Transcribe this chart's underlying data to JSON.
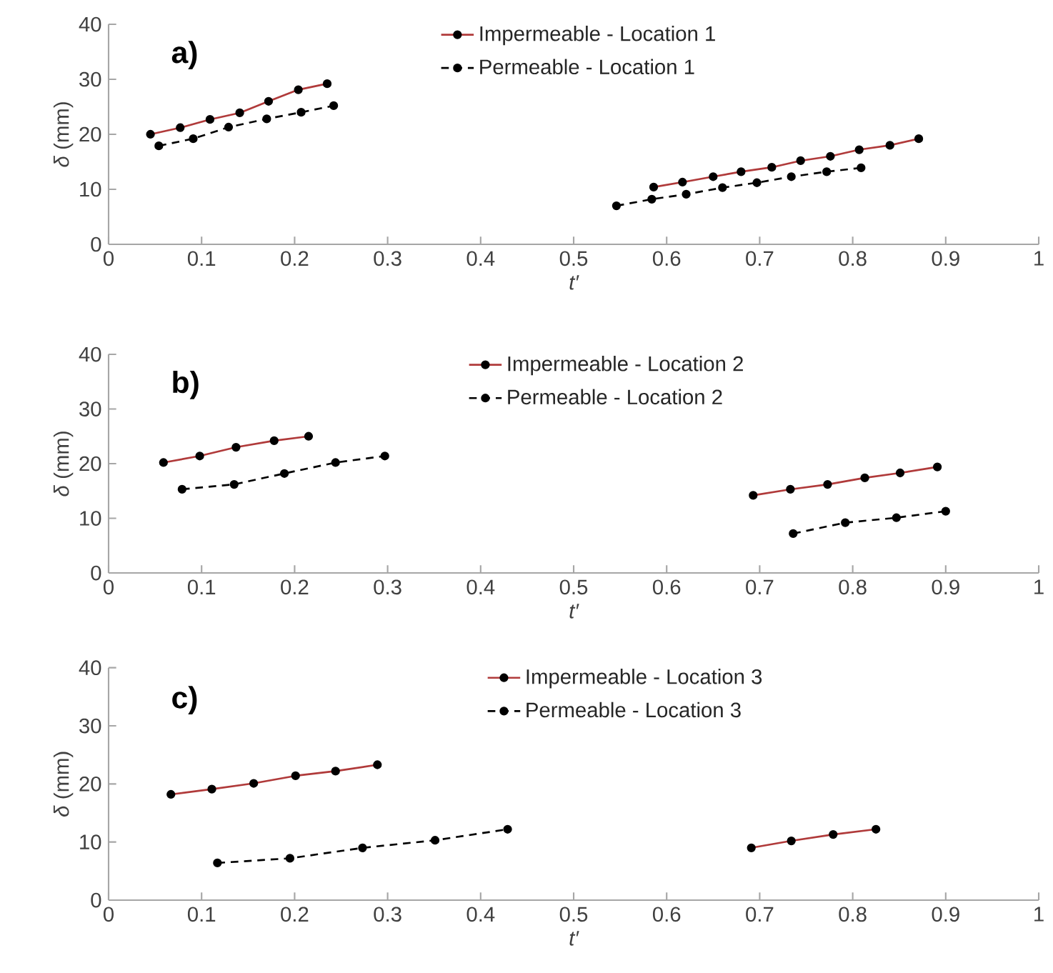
{
  "chart_data": [
    {
      "type": "line",
      "title": "a)",
      "xlabel": "t′",
      "ylabel": "*δ* (mm)",
      "xlim": [
        0,
        1
      ],
      "ylim": [
        0,
        40
      ],
      "xticks": [
        0,
        0.1,
        0.2,
        0.3,
        0.4,
        0.5,
        0.6,
        0.7,
        0.8,
        0.9,
        1
      ],
      "yticks": [
        0,
        10,
        20,
        30,
        40
      ],
      "legend": "top",
      "marker": "circle",
      "grid": false,
      "series": [
        {
          "name": "Impermeable - Location 1",
          "color": "#b03a3a",
          "line_style": "solid",
          "x": [
            0.045,
            0.077,
            0.109,
            0.141,
            0.172,
            0.204,
            0.235,
            0.4,
            0.586,
            0.617,
            0.65,
            0.68,
            0.713,
            0.744,
            0.776,
            0.807,
            0.84,
            0.871
          ],
          "values": [
            20.0,
            21.2,
            22.7,
            23.9,
            26.0,
            28.1,
            29.2,
            null,
            10.4,
            11.3,
            12.3,
            13.2,
            14.0,
            15.2,
            16.0,
            17.2,
            18.0,
            19.2
          ]
        },
        {
          "name": "Permeable - Location 1",
          "color": "#000000",
          "line_style": "dashed",
          "x": [
            0.054,
            0.091,
            0.129,
            0.17,
            0.207,
            0.242,
            0.4,
            0.546,
            0.584,
            0.621,
            0.66,
            0.697,
            0.734,
            0.772,
            0.809
          ],
          "values": [
            17.9,
            19.2,
            21.3,
            22.8,
            24.0,
            25.2,
            null,
            7.0,
            8.2,
            9.1,
            10.3,
            11.2,
            12.3,
            13.2,
            13.9
          ]
        }
      ]
    },
    {
      "type": "line",
      "title": "b)",
      "xlabel": "t′",
      "ylabel": "*δ* (mm)",
      "xlim": [
        0,
        1
      ],
      "ylim": [
        0,
        40
      ],
      "xticks": [
        0,
        0.1,
        0.2,
        0.3,
        0.4,
        0.5,
        0.6,
        0.7,
        0.8,
        0.9,
        1
      ],
      "yticks": [
        0,
        10,
        20,
        30,
        40
      ],
      "legend": "top",
      "marker": "circle",
      "grid": false,
      "series": [
        {
          "name": "Impermeable - Location 2",
          "color": "#b03a3a",
          "line_style": "solid",
          "x": [
            0.059,
            0.098,
            0.137,
            0.178,
            0.215,
            0.45,
            0.693,
            0.733,
            0.773,
            0.813,
            0.851,
            0.891
          ],
          "values": [
            20.2,
            21.4,
            23.0,
            24.2,
            25.0,
            null,
            14.2,
            15.3,
            16.2,
            17.4,
            18.3,
            19.4
          ]
        },
        {
          "name": "Permeable - Location 2",
          "color": "#000000",
          "line_style": "dashed",
          "x": [
            0.079,
            0.135,
            0.189,
            0.244,
            0.297,
            0.5,
            0.736,
            0.792,
            0.847,
            0.9
          ],
          "values": [
            15.3,
            16.2,
            18.2,
            20.2,
            21.4,
            null,
            7.2,
            9.2,
            10.1,
            11.3
          ]
        }
      ]
    },
    {
      "type": "line",
      "title": "c)",
      "xlabel": "t′",
      "ylabel": "*δ* (mm)",
      "xlim": [
        0,
        1
      ],
      "ylim": [
        0,
        40
      ],
      "xticks": [
        0,
        0.1,
        0.2,
        0.3,
        0.4,
        0.5,
        0.6,
        0.7,
        0.8,
        0.9,
        1
      ],
      "yticks": [
        0,
        10,
        20,
        30,
        40
      ],
      "legend": "top",
      "marker": "circle",
      "grid": false,
      "series": [
        {
          "name": "Impermeable - Location 3",
          "color": "#b03a3a",
          "line_style": "solid",
          "x": [
            0.067,
            0.111,
            0.156,
            0.201,
            0.244,
            0.289,
            0.5,
            0.691,
            0.734,
            0.779,
            0.825
          ],
          "values": [
            18.2,
            19.1,
            20.1,
            21.4,
            22.2,
            23.3,
            null,
            9.0,
            10.2,
            11.3,
            12.2
          ]
        },
        {
          "name": "Permeable - Location 3",
          "color": "#000000",
          "line_style": "dashed",
          "x": [
            0.117,
            0.195,
            0.273,
            0.351,
            0.429
          ],
          "values": [
            6.4,
            7.2,
            9.0,
            10.3,
            12.2
          ]
        }
      ]
    }
  ]
}
